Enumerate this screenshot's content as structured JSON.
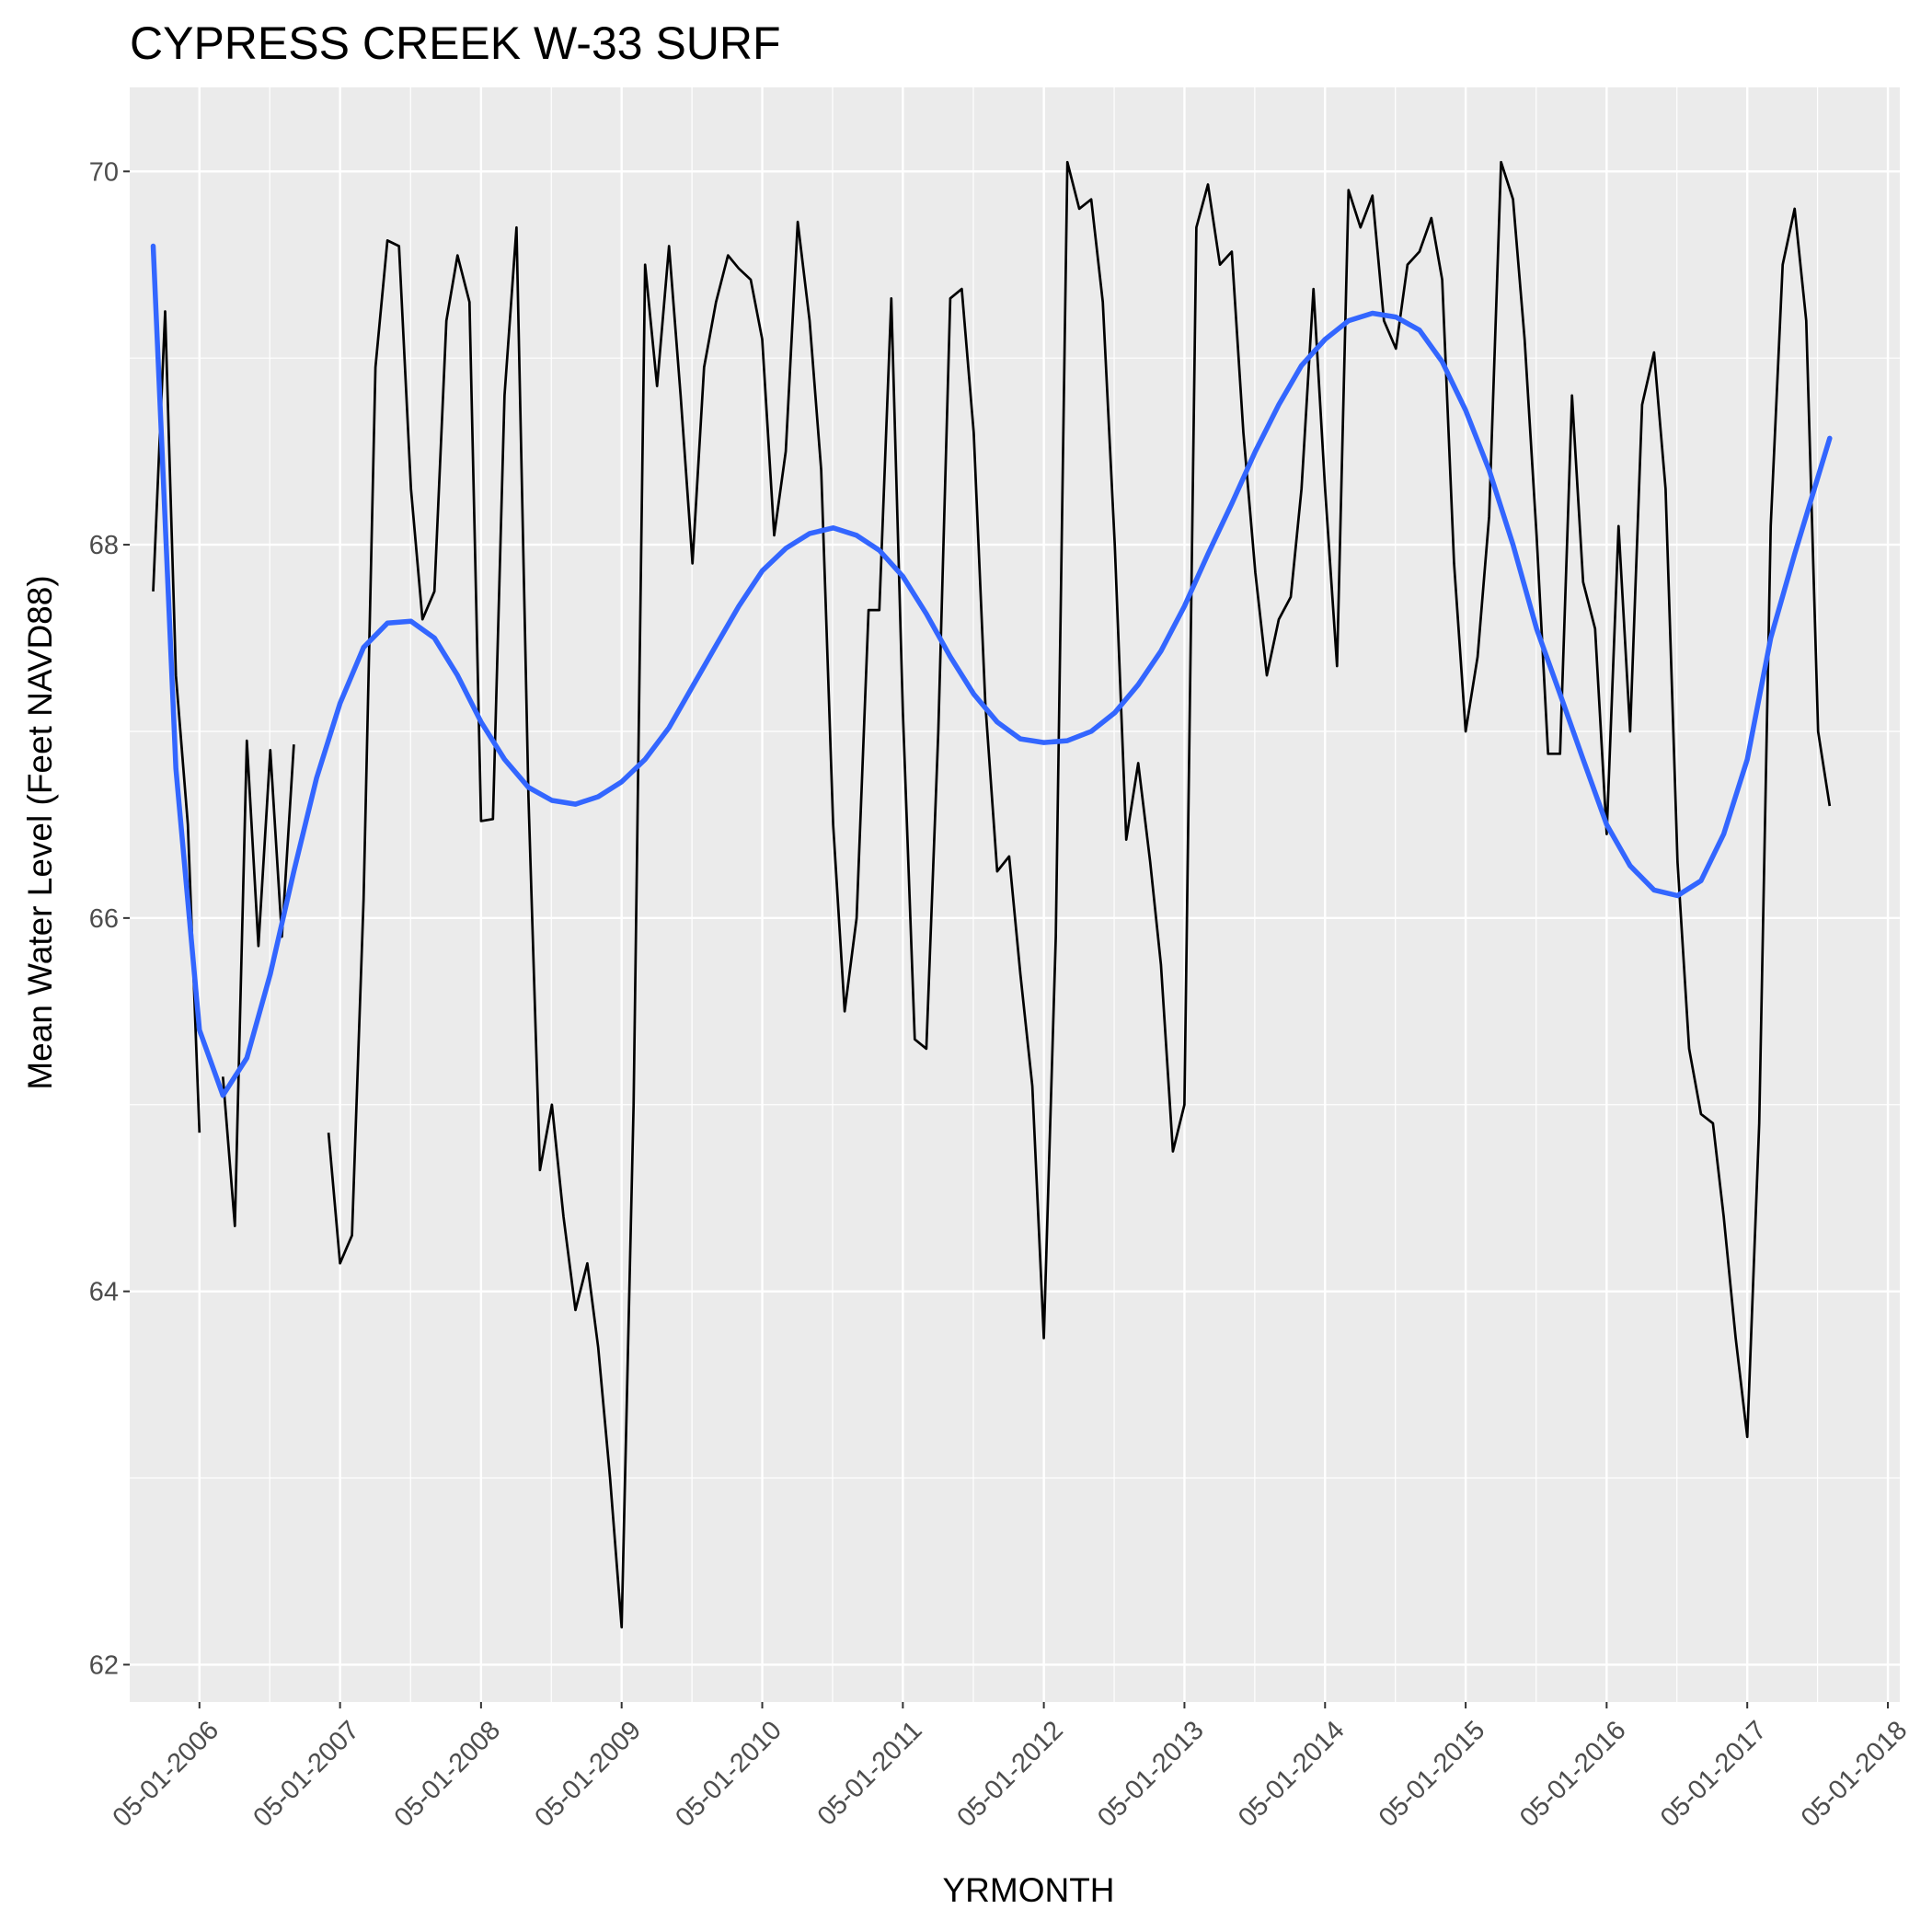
{
  "chart_data": {
    "type": "line",
    "title": "CYPRESS CREEK W-33 SURF",
    "xlabel": "YRMONTH",
    "ylabel": "Mean Water Level (Feet NAVD88)",
    "x_ticks": [
      "05-01-2006",
      "05-01-2007",
      "05-01-2008",
      "05-01-2009",
      "05-01-2010",
      "05-01-2011",
      "05-01-2012",
      "05-01-2013",
      "05-01-2014",
      "05-01-2015",
      "05-01-2016",
      "05-01-2017",
      "05-01-2018"
    ],
    "y_ticks": [
      62,
      64,
      66,
      68,
      70
    ],
    "xlim": [
      "2005-11-01",
      "2018-06-01"
    ],
    "ylim": [
      61.8,
      70.45
    ],
    "grid": true,
    "background": "#ebebeb",
    "series": [
      {
        "style": "raw",
        "color": "#000000",
        "points": [
          [
            "2006-01-01",
            67.75
          ],
          [
            "2006-02-01",
            69.25
          ],
          [
            "2006-03-01",
            67.3
          ],
          [
            "2006-04-01",
            66.5
          ],
          [
            "2006-05-01",
            64.85
          ],
          null,
          [
            "2006-07-01",
            65.15
          ],
          [
            "2006-08-01",
            64.35
          ],
          [
            "2006-09-01",
            66.95
          ],
          [
            "2006-10-01",
            65.85
          ],
          [
            "2006-11-01",
            66.9
          ],
          [
            "2006-12-01",
            65.9
          ],
          [
            "2007-01-01",
            66.93
          ],
          null,
          [
            "2007-04-01",
            64.85
          ],
          [
            "2007-05-01",
            64.15
          ],
          [
            "2007-06-01",
            64.3
          ],
          [
            "2007-07-01",
            66.1
          ],
          [
            "2007-08-01",
            68.95
          ],
          [
            "2007-09-01",
            69.63
          ],
          [
            "2007-10-01",
            69.6
          ],
          [
            "2007-11-01",
            68.3
          ],
          [
            "2007-12-01",
            67.6
          ],
          [
            "2008-01-01",
            67.75
          ],
          [
            "2008-02-01",
            69.2
          ],
          [
            "2008-03-01",
            69.55
          ],
          [
            "2008-04-01",
            69.3
          ],
          [
            "2008-05-01",
            66.52
          ],
          [
            "2008-06-01",
            66.53
          ],
          [
            "2008-07-01",
            68.8
          ],
          [
            "2008-08-01",
            69.7
          ],
          [
            "2008-09-01",
            66.65
          ],
          [
            "2008-10-01",
            64.65
          ],
          [
            "2008-11-01",
            65.0
          ],
          [
            "2008-12-01",
            64.4
          ],
          [
            "2009-01-01",
            63.9
          ],
          [
            "2009-02-01",
            64.15
          ],
          [
            "2009-03-01",
            63.7
          ],
          [
            "2009-04-01",
            63.0
          ],
          [
            "2009-05-01",
            62.2
          ],
          [
            "2009-06-01",
            65.0
          ],
          [
            "2009-07-01",
            69.5
          ],
          [
            "2009-08-01",
            68.85
          ],
          [
            "2009-09-01",
            69.6
          ],
          [
            "2009-10-01",
            68.8
          ],
          [
            "2009-11-01",
            67.9
          ],
          [
            "2009-12-01",
            68.95
          ],
          [
            "2010-01-01",
            69.3
          ],
          [
            "2010-02-01",
            69.55
          ],
          [
            "2010-03-01",
            69.48
          ],
          [
            "2010-04-01",
            69.42
          ],
          [
            "2010-05-01",
            69.1
          ],
          [
            "2010-06-01",
            68.05
          ],
          [
            "2010-07-01",
            68.5
          ],
          [
            "2010-08-01",
            69.73
          ],
          [
            "2010-09-01",
            69.2
          ],
          [
            "2010-10-01",
            68.4
          ],
          [
            "2010-11-01",
            66.5
          ],
          [
            "2010-12-01",
            65.5
          ],
          [
            "2011-01-01",
            66.0
          ],
          [
            "2011-02-01",
            67.65
          ],
          [
            "2011-03-01",
            67.65
          ],
          [
            "2011-04-01",
            69.32
          ],
          [
            "2011-05-01",
            67.1
          ],
          [
            "2011-06-01",
            65.35
          ],
          [
            "2011-07-01",
            65.3
          ],
          [
            "2011-08-01",
            67.0
          ],
          [
            "2011-09-01",
            69.32
          ],
          [
            "2011-10-01",
            69.37
          ],
          [
            "2011-11-01",
            68.6
          ],
          [
            "2011-12-01",
            67.15
          ],
          [
            "2012-01-01",
            66.25
          ],
          [
            "2012-02-01",
            66.33
          ],
          [
            "2012-03-01",
            65.7
          ],
          [
            "2012-04-01",
            65.1
          ],
          [
            "2012-05-01",
            63.75
          ],
          [
            "2012-06-01",
            65.9
          ],
          [
            "2012-07-01",
            70.05
          ],
          [
            "2012-08-01",
            69.8
          ],
          [
            "2012-09-01",
            69.85
          ],
          [
            "2012-10-01",
            69.3
          ],
          [
            "2012-11-01",
            68.0
          ],
          [
            "2012-12-01",
            66.42
          ],
          [
            "2013-01-01",
            66.83
          ],
          [
            "2013-02-01",
            66.3
          ],
          [
            "2013-03-01",
            65.75
          ],
          [
            "2013-04-01",
            64.75
          ],
          [
            "2013-05-01",
            65.0
          ],
          [
            "2013-06-01",
            69.7
          ],
          [
            "2013-07-01",
            69.93
          ],
          [
            "2013-08-01",
            69.5
          ],
          [
            "2013-09-01",
            69.57
          ],
          [
            "2013-10-01",
            68.6
          ],
          [
            "2013-11-01",
            67.85
          ],
          [
            "2013-12-01",
            67.3
          ],
          [
            "2014-01-01",
            67.6
          ],
          [
            "2014-02-01",
            67.72
          ],
          [
            "2014-03-01",
            68.3
          ],
          [
            "2014-04-01",
            69.37
          ],
          [
            "2014-05-01",
            68.3
          ],
          [
            "2014-06-01",
            67.35
          ],
          [
            "2014-07-01",
            69.9
          ],
          [
            "2014-08-01",
            69.7
          ],
          [
            "2014-09-01",
            69.87
          ],
          [
            "2014-10-01",
            69.2
          ],
          [
            "2014-11-01",
            69.05
          ],
          [
            "2014-12-01",
            69.5
          ],
          [
            "2015-01-01",
            69.57
          ],
          [
            "2015-02-01",
            69.75
          ],
          [
            "2015-03-01",
            69.42
          ],
          [
            "2015-04-01",
            67.9
          ],
          [
            "2015-05-01",
            67.0
          ],
          [
            "2015-06-01",
            67.4
          ],
          [
            "2015-07-01",
            68.15
          ],
          [
            "2015-08-01",
            70.05
          ],
          [
            "2015-09-01",
            69.85
          ],
          [
            "2015-10-01",
            69.1
          ],
          [
            "2015-11-01",
            68.05
          ],
          [
            "2015-12-01",
            66.88
          ],
          [
            "2016-01-01",
            66.88
          ],
          [
            "2016-02-01",
            68.8
          ],
          [
            "2016-03-01",
            67.8
          ],
          [
            "2016-04-01",
            67.55
          ],
          [
            "2016-05-01",
            66.45
          ],
          [
            "2016-06-01",
            68.1
          ],
          [
            "2016-07-01",
            67.0
          ],
          [
            "2016-08-01",
            68.75
          ],
          [
            "2016-09-01",
            69.03
          ],
          [
            "2016-10-01",
            68.3
          ],
          [
            "2016-11-01",
            66.3
          ],
          [
            "2016-12-01",
            65.3
          ],
          [
            "2017-01-01",
            64.95
          ],
          [
            "2017-02-01",
            64.9
          ],
          [
            "2017-03-01",
            64.4
          ],
          [
            "2017-04-01",
            63.75
          ],
          [
            "2017-05-01",
            63.22
          ],
          [
            "2017-06-01",
            64.9
          ],
          [
            "2017-07-01",
            68.1
          ],
          [
            "2017-08-01",
            69.5
          ],
          [
            "2017-09-01",
            69.8
          ],
          [
            "2017-10-01",
            69.2
          ],
          [
            "2017-11-01",
            67.0
          ],
          [
            "2017-12-01",
            66.6
          ]
        ]
      },
      {
        "style": "smooth",
        "color": "#3366ff",
        "points": [
          [
            "2006-01-01",
            69.6
          ],
          [
            "2006-03-01",
            66.8
          ],
          [
            "2006-05-01",
            65.4
          ],
          [
            "2006-07-01",
            65.05
          ],
          [
            "2006-09-01",
            65.25
          ],
          [
            "2006-11-01",
            65.7
          ],
          [
            "2007-01-01",
            66.25
          ],
          [
            "2007-03-01",
            66.75
          ],
          [
            "2007-05-01",
            67.15
          ],
          [
            "2007-07-01",
            67.45
          ],
          [
            "2007-09-01",
            67.58
          ],
          [
            "2007-11-01",
            67.59
          ],
          [
            "2008-01-01",
            67.5
          ],
          [
            "2008-03-01",
            67.3
          ],
          [
            "2008-05-01",
            67.05
          ],
          [
            "2008-07-01",
            66.85
          ],
          [
            "2008-09-01",
            66.7
          ],
          [
            "2008-11-01",
            66.63
          ],
          [
            "2009-01-01",
            66.61
          ],
          [
            "2009-03-01",
            66.65
          ],
          [
            "2009-05-01",
            66.73
          ],
          [
            "2009-07-01",
            66.85
          ],
          [
            "2009-09-01",
            67.02
          ],
          [
            "2009-11-01",
            67.24
          ],
          [
            "2010-01-01",
            67.46
          ],
          [
            "2010-03-01",
            67.67
          ],
          [
            "2010-05-01",
            67.86
          ],
          [
            "2010-07-01",
            67.98
          ],
          [
            "2010-09-01",
            68.06
          ],
          [
            "2010-11-01",
            68.09
          ],
          [
            "2011-01-01",
            68.05
          ],
          [
            "2011-03-01",
            67.97
          ],
          [
            "2011-05-01",
            67.83
          ],
          [
            "2011-07-01",
            67.63
          ],
          [
            "2011-09-01",
            67.4
          ],
          [
            "2011-11-01",
            67.2
          ],
          [
            "2012-01-01",
            67.05
          ],
          [
            "2012-03-01",
            66.96
          ],
          [
            "2012-05-01",
            66.94
          ],
          [
            "2012-07-01",
            66.95
          ],
          [
            "2012-09-01",
            67.0
          ],
          [
            "2012-11-01",
            67.1
          ],
          [
            "2013-01-01",
            67.25
          ],
          [
            "2013-03-01",
            67.43
          ],
          [
            "2013-05-01",
            67.67
          ],
          [
            "2013-07-01",
            67.95
          ],
          [
            "2013-09-01",
            68.22
          ],
          [
            "2013-11-01",
            68.5
          ],
          [
            "2014-01-01",
            68.75
          ],
          [
            "2014-03-01",
            68.96
          ],
          [
            "2014-05-01",
            69.1
          ],
          [
            "2014-07-01",
            69.2
          ],
          [
            "2014-09-01",
            69.24
          ],
          [
            "2014-11-01",
            69.22
          ],
          [
            "2015-01-01",
            69.15
          ],
          [
            "2015-03-01",
            68.98
          ],
          [
            "2015-05-01",
            68.72
          ],
          [
            "2015-07-01",
            68.4
          ],
          [
            "2015-09-01",
            68.0
          ],
          [
            "2015-11-01",
            67.55
          ],
          [
            "2016-01-01",
            67.2
          ],
          [
            "2016-03-01",
            66.85
          ],
          [
            "2016-05-01",
            66.5
          ],
          [
            "2016-07-01",
            66.28
          ],
          [
            "2016-09-01",
            66.15
          ],
          [
            "2016-11-01",
            66.12
          ],
          [
            "2017-01-01",
            66.2
          ],
          [
            "2017-03-01",
            66.45
          ],
          [
            "2017-05-01",
            66.85
          ],
          [
            "2017-07-01",
            67.5
          ],
          [
            "2017-09-01",
            67.95
          ],
          [
            "2017-12-01",
            68.57
          ]
        ]
      }
    ]
  }
}
